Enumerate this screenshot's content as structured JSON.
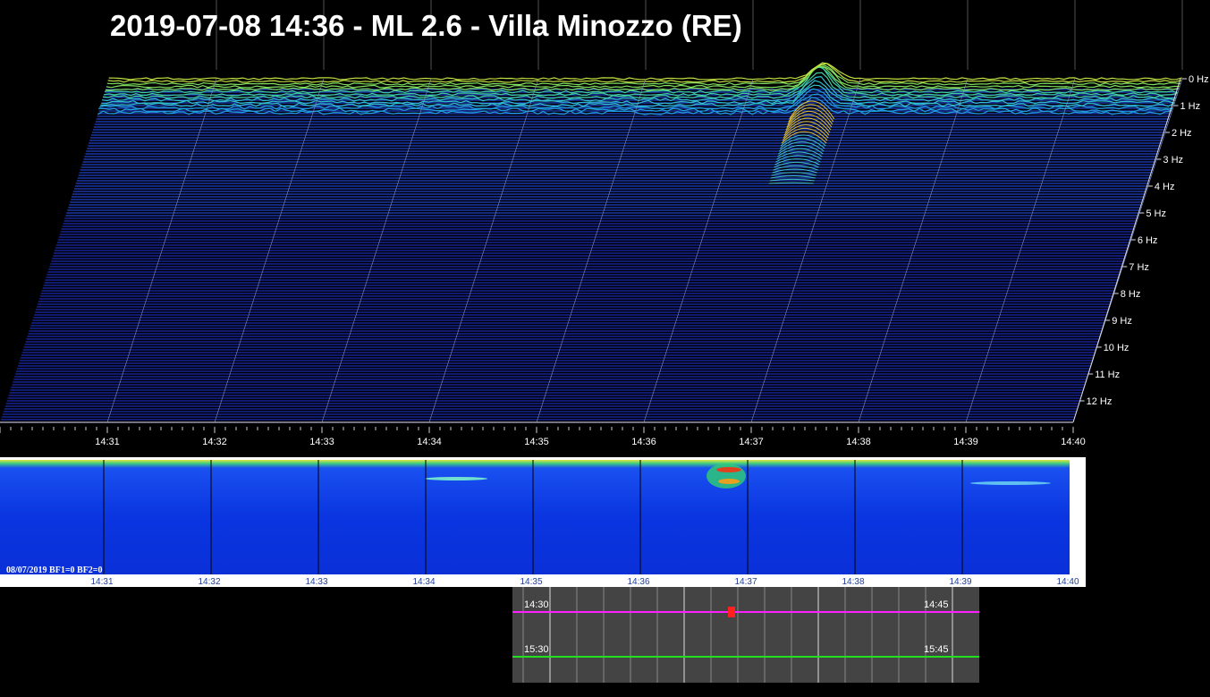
{
  "title": "2019-07-08 14:36 - ML 2.6 - Villa Minozzo (RE)",
  "waterfall": {
    "time_labels": [
      "14:31",
      "14:32",
      "14:33",
      "14:34",
      "14:35",
      "14:36",
      "14:37",
      "14:38",
      "14:39",
      "14:40"
    ],
    "freq_labels": [
      "0 Hz",
      "1 Hz",
      "2 Hz",
      "3 Hz",
      "4 Hz",
      "5 Hz",
      "6 Hz",
      "7 Hz",
      "8 Hz",
      "9 Hz",
      "10 Hz",
      "11 Hz",
      "12 Hz"
    ]
  },
  "spectrogram": {
    "time_labels": [
      "14:31",
      "14:32",
      "14:33",
      "14:34",
      "14:35",
      "14:36",
      "14:37",
      "14:38",
      "14:39",
      "14:40"
    ],
    "caption": "08/07/2019 BF1=0 BF2=0"
  },
  "helicorder": {
    "rows": [
      {
        "start": "14:30",
        "end": "14:45"
      },
      {
        "start": "15:30",
        "end": "15:45"
      }
    ]
  }
}
